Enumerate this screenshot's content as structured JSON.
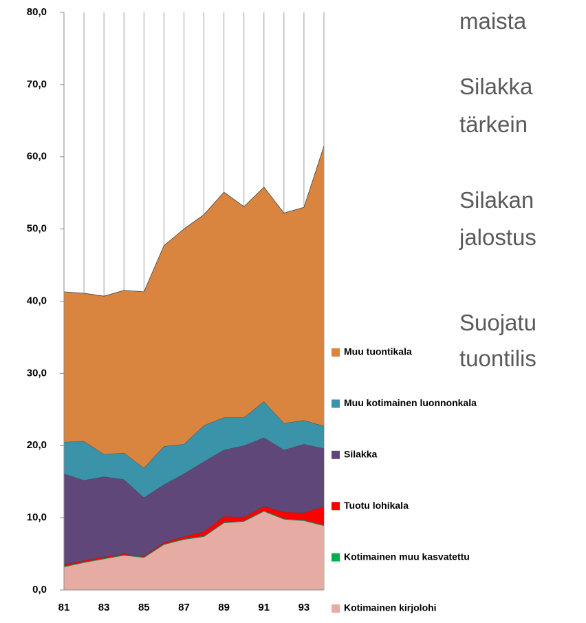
{
  "chart_data": {
    "type": "stacked_area",
    "categories": [
      "81",
      null,
      "83",
      null,
      "85",
      null,
      "87",
      null,
      "89",
      null,
      "91",
      null,
      "93",
      null
    ],
    "series": [
      {
        "name": "Kotimainen kirjolohi",
        "color": "#e6aca3",
        "values": [
          3.2,
          3.8,
          4.3,
          4.8,
          4.5,
          6.3,
          7.0,
          7.4,
          9.3,
          9.5,
          10.9,
          9.8,
          9.6,
          8.9
        ]
      },
      {
        "name": "Kotimainen muu kasvatettu",
        "color": "#00b050",
        "values": [
          0.1,
          0.1,
          0.1,
          0.1,
          0.1,
          0.1,
          0.1,
          0.1,
          0.1,
          0.1,
          0.1,
          0.1,
          0.1,
          0.1
        ]
      },
      {
        "name": "Tuotu lohikala",
        "color": "#ff0000",
        "values": [
          0.2,
          0.2,
          0.2,
          0.1,
          0.1,
          0.2,
          0.3,
          0.6,
          0.8,
          0.5,
          0.6,
          0.9,
          1.0,
          2.6
        ]
      },
      {
        "name": "Silakka",
        "color": "#5f4879",
        "values": [
          12.6,
          11.1,
          11.1,
          10.3,
          8.1,
          8.0,
          8.7,
          9.7,
          9.2,
          9.9,
          9.5,
          8.6,
          9.5,
          8.0
        ]
      },
      {
        "name": "Muu kotimainen luonnonkala",
        "color": "#3a93a8",
        "values": [
          4.4,
          5.4,
          3.1,
          3.7,
          4.1,
          5.3,
          4.1,
          5.0,
          4.5,
          3.9,
          5.0,
          3.7,
          3.3,
          3.1
        ]
      },
      {
        "name": "Muu tuontikala",
        "color": "#d9843f",
        "values": [
          20.8,
          20.5,
          21.9,
          22.5,
          24.4,
          27.8,
          29.8,
          29.2,
          31.2,
          29.2,
          29.7,
          29.1,
          29.5,
          38.8
        ]
      }
    ],
    "ylim": [
      0,
      80
    ],
    "yticks": [
      {
        "value": 0,
        "label": "0,0"
      },
      {
        "value": 10,
        "label": "10,0"
      },
      {
        "value": 20,
        "label": "20,0"
      },
      {
        "value": 30,
        "label": "30,0"
      },
      {
        "value": 40,
        "label": "40,0"
      },
      {
        "value": 50,
        "label": "50,0"
      },
      {
        "value": 60,
        "label": "60,0"
      },
      {
        "value": 70,
        "label": "70,0"
      },
      {
        "value": 80,
        "label": "80,0"
      }
    ],
    "grid": "x"
  },
  "side_text": [
    "maista",
    "Silakka",
    "tärkein",
    "Silakan",
    "jalostus",
    "Suojatu",
    "tuontilis"
  ]
}
